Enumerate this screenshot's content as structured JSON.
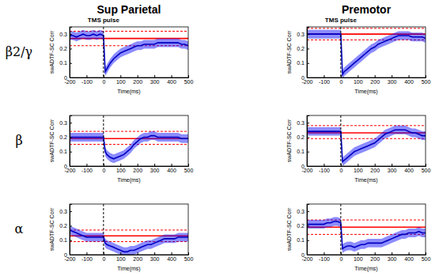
{
  "columns": [
    "Sup Parietal",
    "Premotor"
  ],
  "rows": [
    "β2/γ",
    "β",
    "α"
  ],
  "chart_data": [
    {
      "type": "line",
      "annotation": "TMS pulse",
      "vline": 0,
      "xlabel": "Time(ms)",
      "ylabel": "swADTF-SC Corr",
      "x": [
        -200,
        -180,
        -160,
        -140,
        -120,
        -100,
        -80,
        -60,
        -40,
        -20,
        0,
        10,
        20,
        40,
        60,
        80,
        100,
        120,
        140,
        160,
        180,
        200,
        220,
        240,
        260,
        280,
        300,
        320,
        340,
        360,
        380,
        400,
        420,
        440,
        460,
        480,
        500
      ],
      "xlim": [
        -200,
        500
      ],
      "ylim": [
        0,
        0.35
      ],
      "xticks": [
        -200,
        -100,
        0,
        100,
        200,
        300,
        400,
        500
      ],
      "yticks": [
        0,
        0.1,
        0.2,
        0.3
      ],
      "baseline": {
        "mean": 0.27,
        "lower": 0.22,
        "upper": 0.32,
        "color": "#ff0000"
      },
      "series": [
        {
          "color": "#0000ff",
          "values": [
            0.29,
            0.29,
            0.28,
            0.29,
            0.3,
            0.29,
            0.29,
            0.3,
            0.29,
            0.3,
            0.29,
            0.04,
            0.06,
            0.1,
            0.13,
            0.15,
            0.17,
            0.18,
            0.19,
            0.2,
            0.21,
            0.22,
            0.22,
            0.23,
            0.23,
            0.23,
            0.23,
            0.24,
            0.24,
            0.24,
            0.24,
            0.24,
            0.24,
            0.24,
            0.23,
            0.23,
            0.22
          ],
          "error": [
            0.03,
            0.03,
            0.03,
            0.03,
            0.03,
            0.03,
            0.03,
            0.03,
            0.03,
            0.03,
            0.03,
            0.03,
            0.03,
            0.03,
            0.03,
            0.03,
            0.03,
            0.03,
            0.03,
            0.03,
            0.03,
            0.03,
            0.03,
            0.03,
            0.03,
            0.03,
            0.03,
            0.03,
            0.03,
            0.03,
            0.03,
            0.03,
            0.03,
            0.03,
            0.03,
            0.03,
            0.03
          ]
        }
      ]
    },
    {
      "type": "line",
      "annotation": "TMS pulse",
      "vline": 0,
      "xlabel": "Time(ms)",
      "ylabel": "swADTF-SC Corr",
      "x": [
        -200,
        -180,
        -160,
        -140,
        -120,
        -100,
        -80,
        -60,
        -40,
        -20,
        0,
        10,
        20,
        40,
        60,
        80,
        100,
        120,
        140,
        160,
        180,
        200,
        220,
        240,
        260,
        280,
        300,
        320,
        340,
        360,
        380,
        400,
        420,
        440,
        460,
        480,
        500
      ],
      "xlim": [
        -200,
        500
      ],
      "ylim": [
        0,
        0.35
      ],
      "xticks": [
        -200,
        -100,
        0,
        100,
        200,
        300,
        400,
        500
      ],
      "yticks": [
        0,
        0.1,
        0.2,
        0.3
      ],
      "baseline": {
        "mean": 0.3,
        "lower": 0.26,
        "upper": 0.34,
        "color": "#ff0000"
      },
      "series": [
        {
          "color": "#0000ff",
          "values": [
            0.3,
            0.3,
            0.3,
            0.3,
            0.3,
            0.3,
            0.3,
            0.3,
            0.3,
            0.3,
            0.3,
            0.02,
            0.04,
            0.06,
            0.08,
            0.1,
            0.12,
            0.14,
            0.16,
            0.18,
            0.2,
            0.21,
            0.23,
            0.24,
            0.25,
            0.26,
            0.27,
            0.28,
            0.29,
            0.29,
            0.29,
            0.29,
            0.28,
            0.28,
            0.28,
            0.28,
            0.27
          ],
          "error": [
            0.03,
            0.03,
            0.03,
            0.03,
            0.03,
            0.03,
            0.03,
            0.03,
            0.03,
            0.03,
            0.03,
            0.03,
            0.03,
            0.03,
            0.03,
            0.03,
            0.03,
            0.03,
            0.03,
            0.03,
            0.03,
            0.03,
            0.03,
            0.03,
            0.03,
            0.03,
            0.03,
            0.03,
            0.03,
            0.03,
            0.03,
            0.03,
            0.03,
            0.03,
            0.03,
            0.03,
            0.03
          ]
        }
      ]
    },
    {
      "type": "line",
      "vline": 0,
      "xlabel": "Time(ms)",
      "ylabel": "swADTF-SC Corr",
      "x": [
        -200,
        -180,
        -160,
        -140,
        -120,
        -100,
        -80,
        -60,
        -40,
        -20,
        0,
        10,
        20,
        40,
        60,
        80,
        100,
        120,
        140,
        160,
        180,
        200,
        220,
        240,
        260,
        280,
        300,
        320,
        340,
        360,
        380,
        400,
        420,
        440,
        460,
        480,
        500
      ],
      "xlim": [
        -200,
        500
      ],
      "ylim": [
        0,
        0.35
      ],
      "xticks": [
        -200,
        -100,
        0,
        100,
        200,
        300,
        400,
        500
      ],
      "yticks": [
        0,
        0.1,
        0.2,
        0.3
      ],
      "baseline": {
        "mean": 0.19,
        "lower": 0.15,
        "upper": 0.24,
        "color": "#ff0000"
      },
      "series": [
        {
          "color": "#0000ff",
          "values": [
            0.2,
            0.2,
            0.2,
            0.2,
            0.2,
            0.2,
            0.2,
            0.2,
            0.2,
            0.2,
            0.2,
            0.1,
            0.08,
            0.06,
            0.05,
            0.06,
            0.07,
            0.08,
            0.1,
            0.12,
            0.15,
            0.17,
            0.19,
            0.2,
            0.2,
            0.21,
            0.21,
            0.2,
            0.2,
            0.2,
            0.2,
            0.2,
            0.2,
            0.2,
            0.19,
            0.19,
            0.19
          ],
          "error": [
            0.03,
            0.03,
            0.03,
            0.03,
            0.03,
            0.03,
            0.03,
            0.03,
            0.03,
            0.03,
            0.03,
            0.03,
            0.03,
            0.03,
            0.03,
            0.03,
            0.03,
            0.03,
            0.03,
            0.03,
            0.03,
            0.03,
            0.03,
            0.03,
            0.03,
            0.03,
            0.03,
            0.03,
            0.03,
            0.03,
            0.03,
            0.03,
            0.03,
            0.03,
            0.03,
            0.03,
            0.03
          ]
        }
      ]
    },
    {
      "type": "line",
      "vline": 0,
      "xlabel": "Time(ms)",
      "ylabel": "swADTF-SC Corr",
      "x": [
        -200,
        -180,
        -160,
        -140,
        -120,
        -100,
        -80,
        -60,
        -40,
        -20,
        0,
        10,
        20,
        40,
        60,
        80,
        100,
        120,
        140,
        160,
        180,
        200,
        220,
        240,
        260,
        280,
        300,
        320,
        340,
        360,
        380,
        400,
        420,
        440,
        460,
        480,
        500
      ],
      "xlim": [
        -200,
        500
      ],
      "ylim": [
        0,
        0.35
      ],
      "xticks": [
        -200,
        -100,
        0,
        100,
        200,
        300,
        400,
        500
      ],
      "yticks": [
        0,
        0.1,
        0.2,
        0.3
      ],
      "baseline": {
        "mean": 0.23,
        "lower": 0.19,
        "upper": 0.28,
        "color": "#ff0000"
      },
      "series": [
        {
          "color": "#0000ff",
          "values": [
            0.24,
            0.24,
            0.24,
            0.24,
            0.24,
            0.24,
            0.24,
            0.24,
            0.24,
            0.24,
            0.24,
            0.03,
            0.04,
            0.06,
            0.08,
            0.1,
            0.11,
            0.12,
            0.13,
            0.14,
            0.15,
            0.16,
            0.18,
            0.2,
            0.22,
            0.23,
            0.24,
            0.25,
            0.25,
            0.25,
            0.25,
            0.24,
            0.23,
            0.23,
            0.22,
            0.21,
            0.21
          ],
          "error": [
            0.03,
            0.03,
            0.03,
            0.03,
            0.03,
            0.03,
            0.03,
            0.03,
            0.03,
            0.03,
            0.03,
            0.03,
            0.03,
            0.03,
            0.03,
            0.03,
            0.03,
            0.03,
            0.03,
            0.03,
            0.03,
            0.03,
            0.03,
            0.03,
            0.03,
            0.03,
            0.03,
            0.03,
            0.03,
            0.03,
            0.03,
            0.03,
            0.03,
            0.03,
            0.03,
            0.03,
            0.03
          ]
        }
      ]
    },
    {
      "type": "line",
      "vline": 0,
      "xlabel": "Time(ms)",
      "ylabel": "swADTF-SC Corr",
      "x": [
        -200,
        -180,
        -160,
        -140,
        -120,
        -100,
        -80,
        -60,
        -40,
        -20,
        0,
        10,
        20,
        40,
        60,
        80,
        100,
        120,
        140,
        160,
        180,
        200,
        220,
        240,
        260,
        280,
        300,
        320,
        340,
        360,
        380,
        400,
        420,
        440,
        460,
        480,
        500
      ],
      "xlim": [
        -200,
        500
      ],
      "ylim": [
        0,
        0.35
      ],
      "xticks": [
        -200,
        -100,
        0,
        100,
        200,
        300,
        400,
        500
      ],
      "yticks": [
        0,
        0.1,
        0.2,
        0.3
      ],
      "baseline": {
        "mean": 0.13,
        "lower": 0.09,
        "upper": 0.17,
        "color": "#ff0000"
      },
      "series": [
        {
          "color": "#0000ff",
          "values": [
            0.17,
            0.16,
            0.15,
            0.14,
            0.13,
            0.12,
            0.12,
            0.12,
            0.12,
            0.12,
            0.12,
            0.08,
            0.07,
            0.06,
            0.05,
            0.04,
            0.03,
            0.02,
            0.02,
            0.03,
            0.03,
            0.04,
            0.05,
            0.06,
            0.07,
            0.07,
            0.08,
            0.09,
            0.1,
            0.11,
            0.11,
            0.11,
            0.11,
            0.12,
            0.12,
            0.12,
            0.12
          ],
          "error": [
            0.03,
            0.03,
            0.03,
            0.03,
            0.03,
            0.03,
            0.03,
            0.03,
            0.03,
            0.03,
            0.03,
            0.03,
            0.03,
            0.03,
            0.03,
            0.03,
            0.03,
            0.03,
            0.03,
            0.03,
            0.03,
            0.03,
            0.03,
            0.03,
            0.03,
            0.03,
            0.03,
            0.03,
            0.03,
            0.03,
            0.03,
            0.03,
            0.03,
            0.03,
            0.03,
            0.03,
            0.03
          ]
        }
      ]
    },
    {
      "type": "line",
      "vline": 0,
      "xlabel": "Time(ms)",
      "ylabel": "swADTF-SC Corr",
      "x": [
        -200,
        -180,
        -160,
        -140,
        -120,
        -100,
        -80,
        -60,
        -40,
        -20,
        0,
        10,
        20,
        40,
        60,
        80,
        100,
        120,
        140,
        160,
        180,
        200,
        220,
        240,
        260,
        280,
        300,
        320,
        340,
        360,
        380,
        400,
        420,
        440,
        460,
        480,
        500
      ],
      "xlim": [
        -200,
        500
      ],
      "ylim": [
        0,
        0.35
      ],
      "xticks": [
        -200,
        -100,
        0,
        100,
        200,
        300,
        400,
        500
      ],
      "yticks": [
        0,
        0.1,
        0.2,
        0.3
      ],
      "baseline": {
        "mean": 0.19,
        "lower": 0.14,
        "upper": 0.24,
        "color": "#ff0000"
      },
      "series": [
        {
          "color": "#0000ff",
          "values": [
            0.21,
            0.21,
            0.21,
            0.21,
            0.21,
            0.21,
            0.22,
            0.22,
            0.23,
            0.23,
            0.22,
            0.04,
            0.05,
            0.06,
            0.06,
            0.05,
            0.06,
            0.07,
            0.07,
            0.08,
            0.08,
            0.08,
            0.08,
            0.08,
            0.09,
            0.1,
            0.11,
            0.12,
            0.13,
            0.14,
            0.14,
            0.15,
            0.15,
            0.15,
            0.16,
            0.15,
            0.15
          ],
          "error": [
            0.03,
            0.03,
            0.03,
            0.03,
            0.03,
            0.03,
            0.03,
            0.03,
            0.03,
            0.03,
            0.03,
            0.03,
            0.03,
            0.03,
            0.03,
            0.03,
            0.03,
            0.03,
            0.03,
            0.03,
            0.03,
            0.03,
            0.03,
            0.03,
            0.03,
            0.03,
            0.03,
            0.03,
            0.03,
            0.03,
            0.03,
            0.03,
            0.03,
            0.03,
            0.03,
            0.03,
            0.03
          ]
        }
      ]
    }
  ]
}
